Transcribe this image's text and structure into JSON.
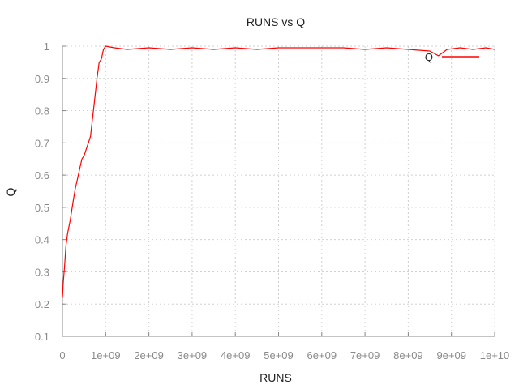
{
  "chart_data": {
    "type": "line",
    "title": "RUNS vs Q",
    "xlabel": "RUNS",
    "ylabel": "Q",
    "xlim": [
      0,
      10000000000
    ],
    "ylim": [
      0.1,
      1
    ],
    "x_ticks": [
      0,
      1000000000,
      2000000000,
      3000000000,
      4000000000,
      5000000000,
      6000000000,
      7000000000,
      8000000000,
      9000000000,
      10000000000
    ],
    "x_tick_labels": [
      "0",
      "1e+09",
      "2e+09",
      "3e+09",
      "4e+09",
      "5e+09",
      "6e+09",
      "7e+09",
      "8e+09",
      "9e+09",
      "1e+10"
    ],
    "y_ticks": [
      0.1,
      0.2,
      0.3,
      0.4,
      0.5,
      0.6,
      0.7,
      0.8,
      0.9,
      1
    ],
    "y_tick_labels": [
      "0.1",
      "0.2",
      "0.3",
      "0.4",
      "0.5",
      "0.6",
      "0.7",
      "0.8",
      "0.9",
      "1"
    ],
    "grid": true,
    "legend_position": "top-right",
    "series": [
      {
        "name": "Q",
        "color": "#ff0000",
        "x": [
          0,
          20000000,
          50000000,
          80000000,
          120000000,
          180000000,
          250000000,
          300000000,
          350000000,
          400000000,
          450000000,
          500000000,
          550000000,
          600000000,
          650000000,
          700000000,
          750000000,
          800000000,
          850000000,
          900000000,
          950000000,
          1000000000,
          1200000000,
          1500000000,
          2000000000,
          2500000000,
          3000000000,
          3500000000,
          4000000000,
          4500000000,
          5000000000,
          5500000000,
          6000000000,
          6500000000,
          7000000000,
          7500000000,
          8000000000,
          8500000000,
          8700000000,
          8900000000,
          9200000000,
          9500000000,
          9800000000,
          10000000000
        ],
        "values": [
          0.22,
          0.27,
          0.32,
          0.38,
          0.42,
          0.46,
          0.52,
          0.56,
          0.59,
          0.62,
          0.65,
          0.66,
          0.68,
          0.7,
          0.72,
          0.78,
          0.84,
          0.9,
          0.95,
          0.96,
          0.99,
          1.0,
          0.995,
          0.99,
          0.995,
          0.99,
          0.995,
          0.99,
          0.995,
          0.99,
          0.995,
          0.995,
          0.995,
          0.995,
          0.99,
          0.995,
          0.99,
          0.985,
          0.97,
          0.99,
          0.995,
          0.99,
          0.995,
          0.99
        ]
      }
    ]
  }
}
